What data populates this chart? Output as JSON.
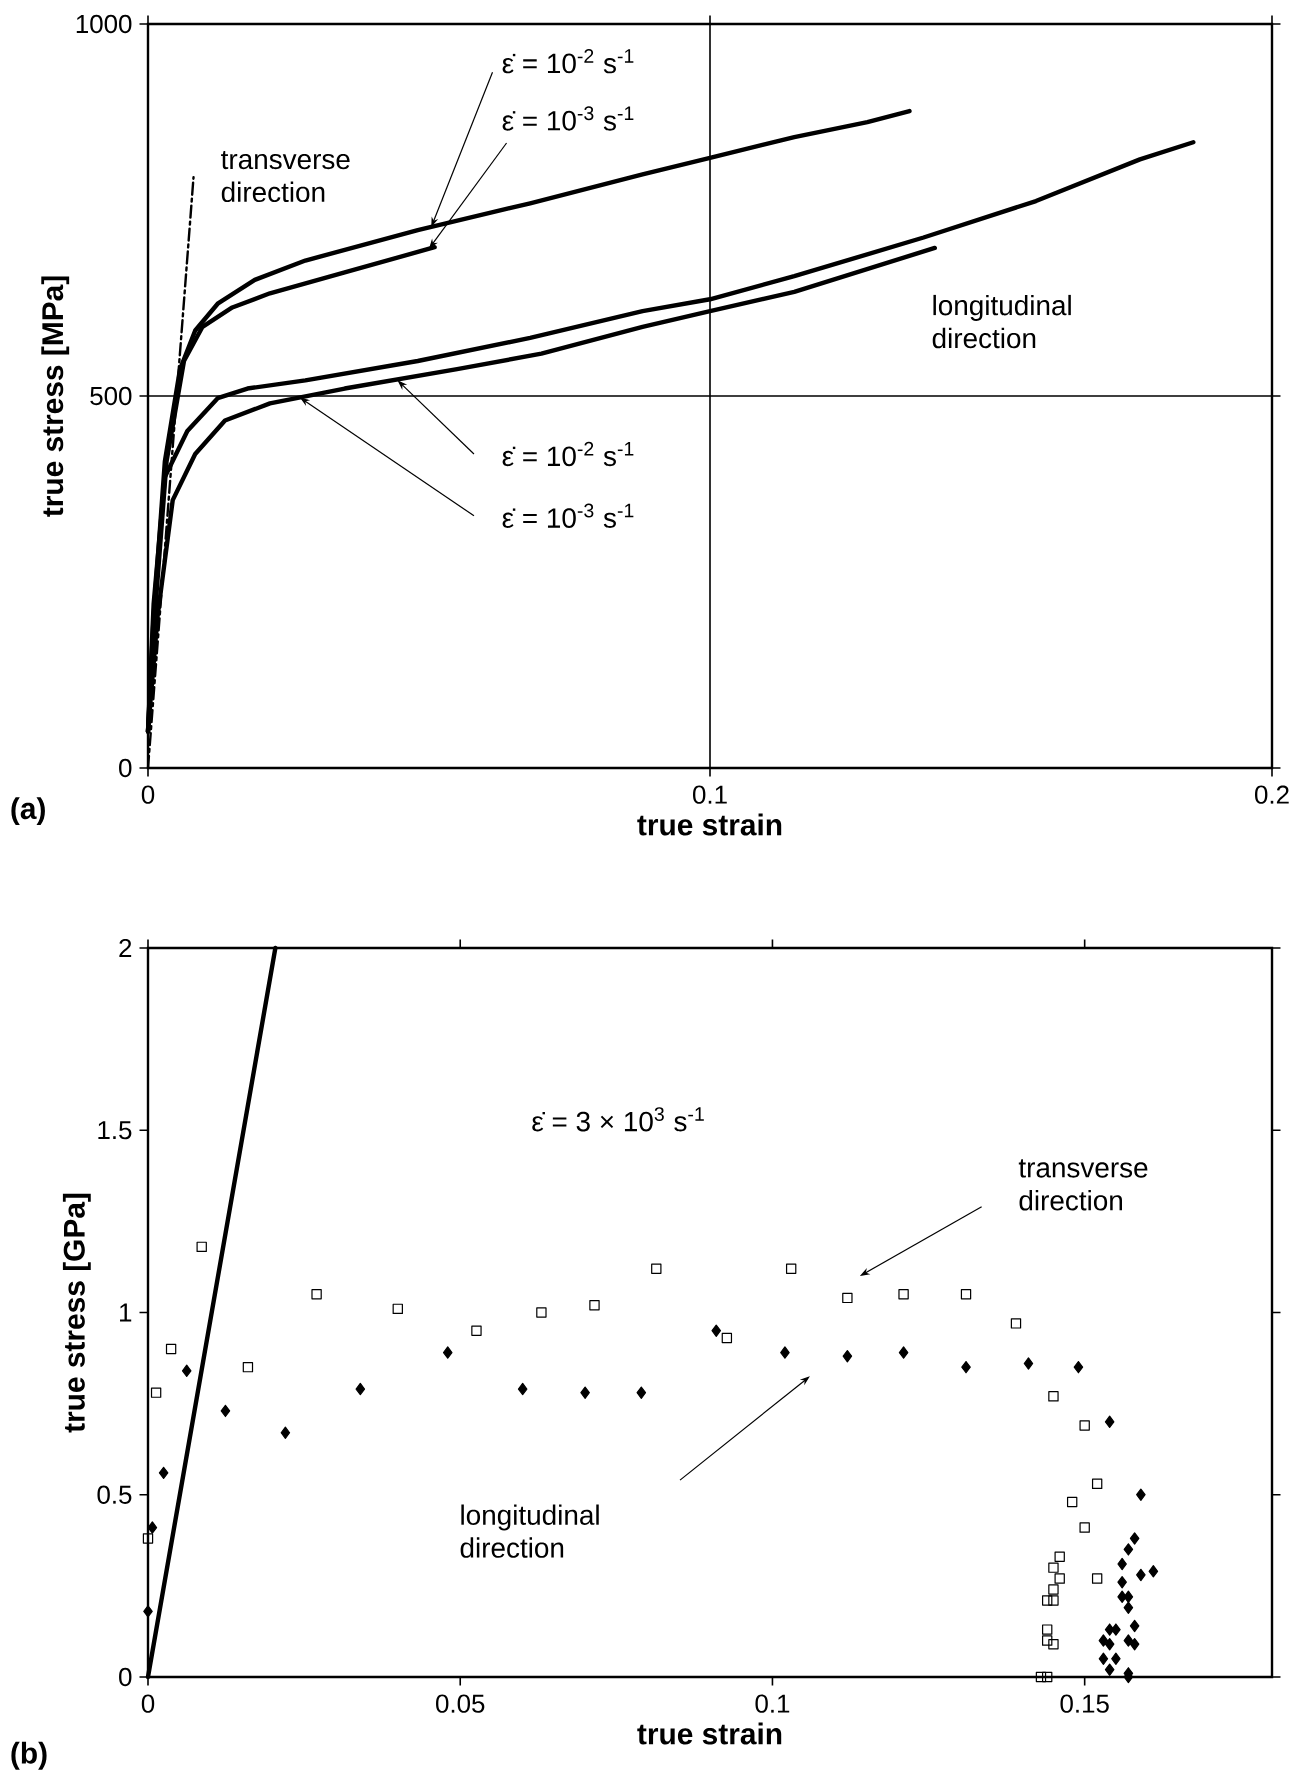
{
  "chart_data": [
    {
      "type": "line",
      "xlabel": "true strain",
      "ylabel": "true stress [MPa]",
      "xlim": [
        0,
        0.2
      ],
      "ylim": [
        0,
        1000
      ],
      "xticks": [
        0,
        0.1,
        0.2
      ],
      "yticks": [
        0,
        500,
        1000
      ],
      "grid": true,
      "series": [
        {
          "color": "#000000",
          "x": [
            0,
            0.001,
            0.003,
            0.0057,
            0.0084,
            0.0124,
            0.019,
            0.028,
            0.048,
            0.068,
            0.088,
            0.1,
            0.115,
            0.128,
            0.1355
          ],
          "values": [
            49,
            204,
            412,
            536,
            588,
            624,
            656,
            682,
            723,
            759,
            798,
            820,
            848,
            868,
            883
          ]
        },
        {
          "color": "#000000",
          "x": [
            0,
            0.001,
            0.0033,
            0.0064,
            0.0097,
            0.015,
            0.0217,
            0.035,
            0.051
          ],
          "values": [
            49,
            184,
            412,
            547,
            593,
            619,
            638,
            666,
            700
          ]
        },
        {
          "color": "#000000",
          "x": [
            0,
            0.001,
            0.003,
            0.007,
            0.0124,
            0.0177,
            0.028,
            0.048,
            0.068,
            0.088,
            0.1,
            0.115,
            0.138,
            0.158,
            0.1765,
            0.186
          ],
          "values": [
            49,
            220,
            391,
            453,
            497,
            510,
            521,
            547,
            578,
            614,
            630,
            661,
            713,
            762,
            818,
            841
          ]
        },
        {
          "color": "#000000",
          "x": [
            0,
            0.0017,
            0.0044,
            0.0084,
            0.0137,
            0.0217,
            0.035,
            0.055,
            0.07,
            0.088,
            0.1,
            0.115,
            0.14
          ],
          "values": [
            49,
            204,
            360,
            422,
            467,
            490,
            510,
            536,
            557,
            593,
            614,
            640,
            699
          ]
        },
        {
          "color": "#000000",
          "line_style": "dashed",
          "x": [
            0,
            0.0081
          ],
          "values": [
            0,
            794
          ]
        }
      ],
      "annotations": [
        "(a)",
        "transverse direction",
        "longitudinal direction",
        {
          "text": "ε̇ = 10$^{-2}$ s$^{-1}$",
          "x": 0.0504,
          "y": 727
        },
        {
          "text": "ε̇ = 10$^{-3}$ s$^{-1}$",
          "x": 0.05,
          "y": 698
        },
        {
          "text": "ε̇ = 10$^{-2}$ s$^{-1}$",
          "x": 0.0444,
          "y": 521
        },
        {
          "text": "ε̇ = 10$^{-3}$ s$^{-1}$",
          "x": 0.027,
          "y": 498
        }
      ]
    },
    {
      "type": "scatter",
      "xlabel": "true strain",
      "ylabel": "true stress [GPa]",
      "xlim": [
        0,
        0.18
      ],
      "ylim": [
        0,
        2
      ],
      "xticks": [
        0,
        0.05,
        0.1,
        0.15
      ],
      "yticks": [
        0,
        0.5,
        1,
        1.5,
        2
      ],
      "series": [
        {
          "color": "#000000",
          "marker": "square",
          "x": [
            0,
            0.0013,
            0.0037,
            0.0086,
            0.016,
            0.027,
            0.04,
            0.0526,
            0.063,
            0.0715,
            0.0814,
            0.0927,
            0.103,
            0.112,
            0.121,
            0.131,
            0.139,
            0.145,
            0.15,
            0.152,
            0.148,
            0.15,
            0.152,
            0.146,
            0.145,
            0.146,
            0.144,
            0.145,
            0.145,
            0.144,
            0.144,
            0.145,
            0.143,
            0.144
          ],
          "values": [
            0.38,
            0.78,
            0.9,
            1.18,
            0.85,
            1.05,
            1.01,
            0.95,
            1.0,
            1.02,
            1.12,
            0.93,
            1.12,
            1.04,
            1.05,
            1.05,
            0.97,
            0.77,
            0.69,
            0.53,
            0.48,
            0.41,
            0.27,
            0.33,
            0.3,
            0.27,
            0.21,
            0.21,
            0.24,
            0.13,
            0.1,
            0.09,
            0,
            0
          ]
        },
        {
          "color": "#000000",
          "marker": "diamond",
          "x": [
            0,
            0.0007,
            0.0025,
            0.0062,
            0.0124,
            0.022,
            0.034,
            0.048,
            0.06,
            0.07,
            0.079,
            0.091,
            0.102,
            0.112,
            0.121,
            0.131,
            0.141,
            0.149,
            0.154,
            0.159,
            0.158,
            0.157,
            0.156,
            0.161,
            0.159,
            0.156,
            0.156,
            0.157,
            0.157,
            0.158,
            0.154,
            0.155,
            0.157,
            0.158,
            0.153,
            0.154,
            0.153,
            0.155,
            0.154,
            0.157,
            0.157
          ],
          "values": [
            0.18,
            0.41,
            0.56,
            0.84,
            0.73,
            0.67,
            0.79,
            0.89,
            0.79,
            0.78,
            0.78,
            0.95,
            0.89,
            0.88,
            0.89,
            0.85,
            0.86,
            0.85,
            0.7,
            0.5,
            0.38,
            0.35,
            0.31,
            0.29,
            0.28,
            0.26,
            0.22,
            0.22,
            0.19,
            0.14,
            0.13,
            0.13,
            0.1,
            0.09,
            0.1,
            0.09,
            0.05,
            0.05,
            0.02,
            0.01,
            0
          ]
        },
        {
          "type": "line",
          "marker": "none",
          "color": "#000000",
          "x": [
            0,
            0.0204
          ],
          "values": [
            0,
            2
          ]
        }
      ],
      "annotations": [
        "(b)",
        "ε̇ = 3 × 10$^{3}$ s$^{-1}$",
        "transverse direction",
        "longitudinal direction"
      ]
    }
  ]
}
